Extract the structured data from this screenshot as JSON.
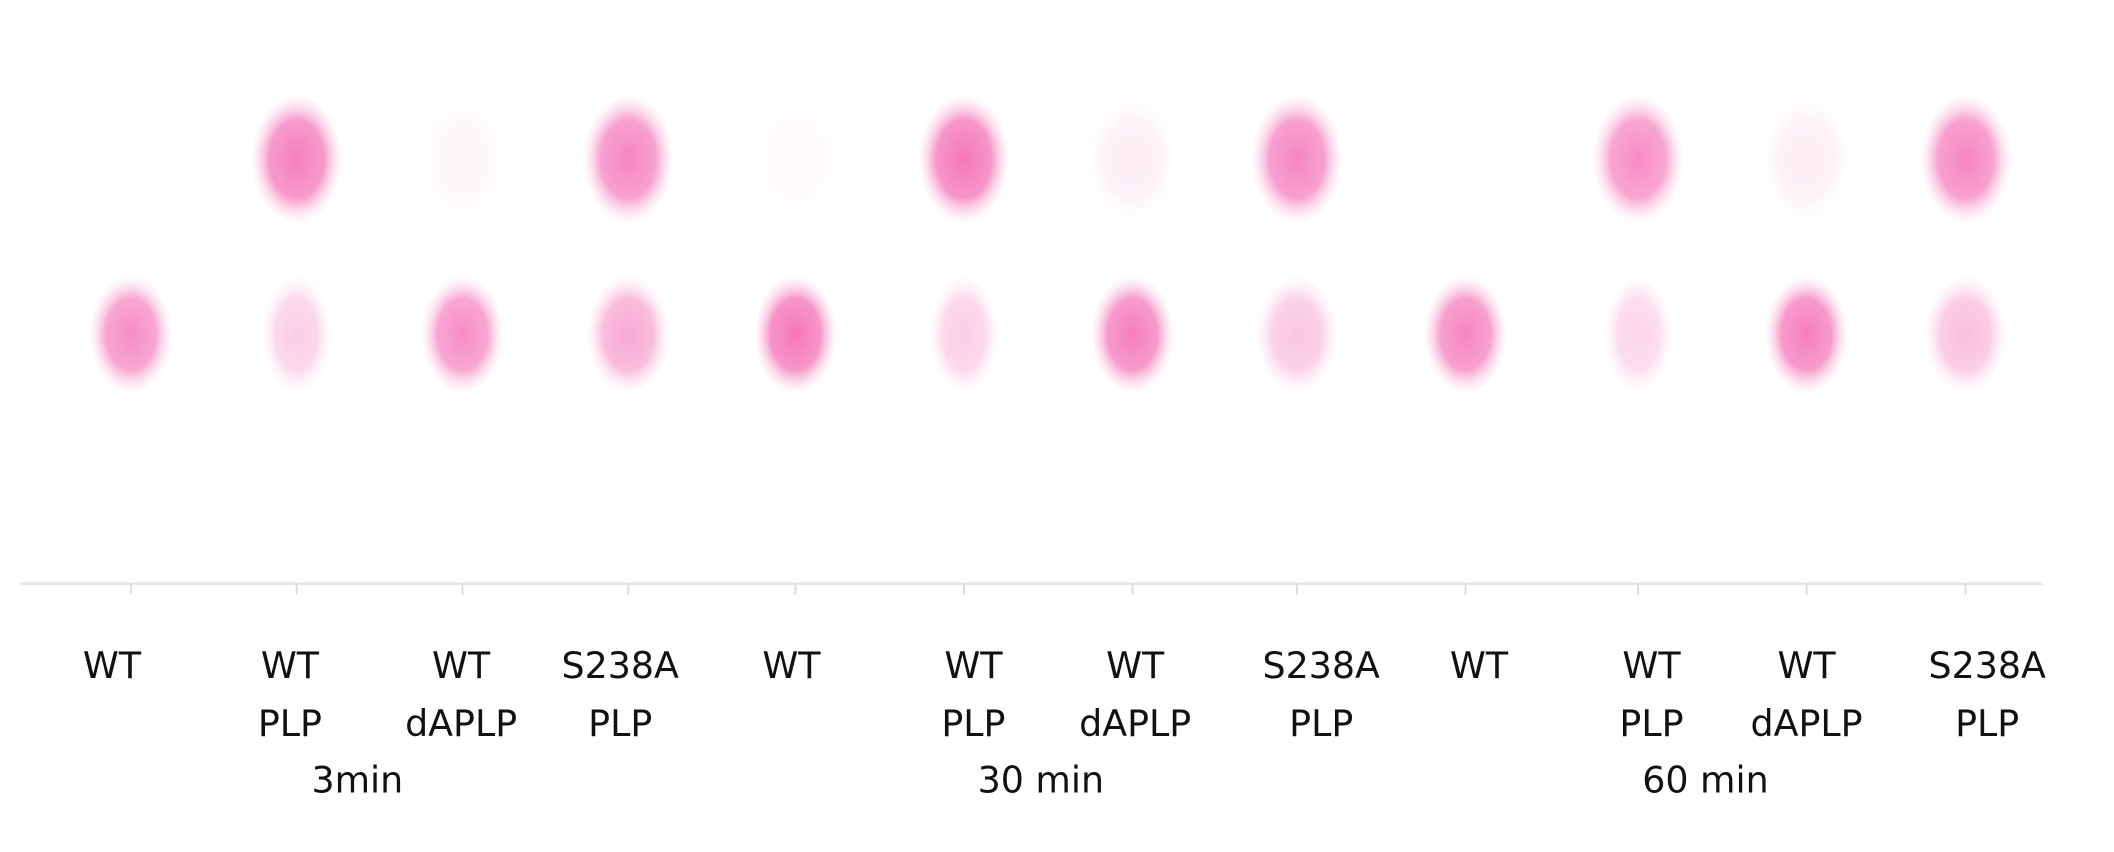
{
  "lanes": [
    [
      "WT"
    ],
    [
      "WT",
      "PLP"
    ],
    [
      "WT",
      "dAPLP"
    ],
    [
      "S238A",
      "PLP"
    ],
    [
      "WT"
    ],
    [
      "WT",
      "PLP"
    ],
    [
      "WT",
      "dAPLP"
    ],
    [
      "S238A",
      "PLP"
    ],
    [
      "WT"
    ],
    [
      "WT",
      "PLP"
    ],
    [
      "WT",
      "dAPLP"
    ],
    [
      "S238A",
      "PLP"
    ]
  ],
  "times": [
    "3min",
    "30 min",
    "60 min"
  ]
}
